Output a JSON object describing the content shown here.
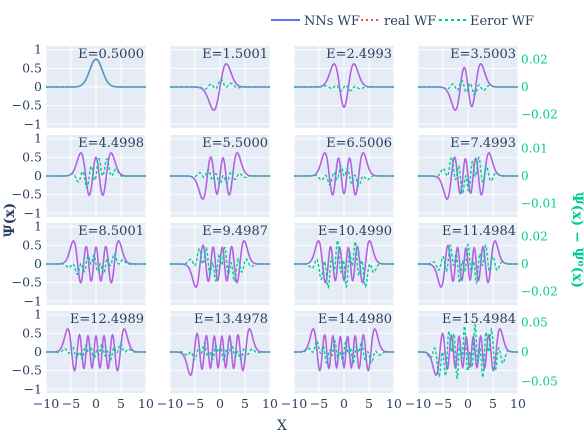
{
  "legend": {
    "nn_label": "NNs WF",
    "real_label": "real WF",
    "error_label": "Eeror WF"
  },
  "colors": {
    "nn": "#636efa",
    "real": "#ef553b",
    "error": "#00cc96",
    "product": "#ab63fa",
    "panel_bg": "#e5ecf6",
    "grid": "#ffffff",
    "text": "#2a3f5f"
  },
  "axes": {
    "xlabel": "X",
    "ylabel_left": "Ψ(x)",
    "ylabel_right": "Ψ(x) − Ψ⁰(x)"
  },
  "chart_data": {
    "type": "line",
    "grid": "on",
    "legend_placement": "top-right",
    "xlim": [
      -10,
      10
    ],
    "ylim": [
      -1.1,
      1.1
    ],
    "x_ticks": [
      -10,
      -5,
      0,
      5,
      10
    ],
    "x_tick_labels": [
      "−10",
      "−5",
      "0",
      "5",
      "10"
    ],
    "y_ticks": [
      -1,
      -0.5,
      0,
      0.5,
      1
    ],
    "y_tick_labels": [
      "−1",
      "−0.5",
      "0",
      "0.5",
      "1"
    ],
    "panels": [
      {
        "energy_label": "E=0.5000",
        "n": 0,
        "err_amp": 0.75,
        "err_range": [
          -0.03,
          0.03
        ],
        "err_ticks": [
          0.02,
          0,
          -0.02
        ],
        "err_tick_labels": [
          "0.02",
          "0",
          "−0.02"
        ]
      },
      {
        "energy_label": "E=1.5001",
        "n": 1,
        "err_amp": 0.45,
        "err_range": [
          -0.03,
          0.03
        ],
        "err_ticks": [
          0.02,
          0,
          -0.02
        ],
        "err_tick_labels": [
          "0.02",
          "0",
          "−0.02"
        ]
      },
      {
        "energy_label": "E=2.4993",
        "n": 2,
        "err_amp": 0.25,
        "err_range": [
          -0.03,
          0.03
        ],
        "err_ticks": [
          0.02,
          0,
          -0.02
        ],
        "err_tick_labels": [
          "0.02",
          "0",
          "−0.02"
        ]
      },
      {
        "energy_label": "E=3.5003",
        "n": 3,
        "err_amp": 0.45,
        "err_range": [
          -0.03,
          0.03
        ],
        "err_ticks": [
          0.02,
          0,
          -0.02
        ],
        "err_tick_labels": [
          "0.02",
          "0",
          "−0.02"
        ]
      },
      {
        "energy_label": "E=4.4998",
        "n": 4,
        "err_amp": 0.75,
        "err_range": [
          -0.015,
          0.015
        ],
        "err_ticks": [
          0.01,
          0,
          -0.01
        ],
        "err_tick_labels": [
          "0.01",
          "0",
          "−0.01"
        ]
      },
      {
        "energy_label": "E=5.5000",
        "n": 5,
        "err_amp": 0.35,
        "err_range": [
          -0.015,
          0.015
        ],
        "err_ticks": [
          0.01,
          0,
          -0.01
        ],
        "err_tick_labels": [
          "0.01",
          "0",
          "−0.01"
        ]
      },
      {
        "energy_label": "E=6.5006",
        "n": 6,
        "err_amp": 0.4,
        "err_range": [
          -0.015,
          0.015
        ],
        "err_ticks": [
          0.01,
          0,
          -0.01
        ],
        "err_tick_labels": [
          "0.01",
          "0",
          "−0.01"
        ]
      },
      {
        "energy_label": "E=7.4993",
        "n": 7,
        "err_amp": 0.75,
        "err_range": [
          -0.015,
          0.015
        ],
        "err_ticks": [
          0.01,
          0,
          -0.01
        ],
        "err_tick_labels": [
          "0.01",
          "0",
          "−0.01"
        ]
      },
      {
        "energy_label": "E=8.5001",
        "n": 8,
        "err_amp": 0.4,
        "err_range": [
          -0.03,
          0.03
        ],
        "err_ticks": [
          0.02,
          0,
          -0.02
        ],
        "err_tick_labels": [
          "0.02",
          "0",
          "−0.02"
        ]
      },
      {
        "energy_label": "E=9.4987",
        "n": 9,
        "err_amp": 0.65,
        "err_range": [
          -0.03,
          0.03
        ],
        "err_ticks": [
          0.02,
          0,
          -0.02
        ],
        "err_tick_labels": [
          "0.02",
          "0",
          "−0.02"
        ]
      },
      {
        "energy_label": "E=10.4990",
        "n": 10,
        "err_amp": 0.85,
        "err_range": [
          -0.03,
          0.03
        ],
        "err_ticks": [
          0.02,
          0,
          -0.02
        ],
        "err_tick_labels": [
          "0.02",
          "0",
          "−0.02"
        ]
      },
      {
        "energy_label": "E=11.4984",
        "n": 11,
        "err_amp": 0.7,
        "err_range": [
          -0.03,
          0.03
        ],
        "err_ticks": [
          0.02,
          0,
          -0.02
        ],
        "err_tick_labels": [
          "0.02",
          "0",
          "−0.02"
        ]
      },
      {
        "energy_label": "E=12.4989",
        "n": 12,
        "err_amp": 0.3,
        "err_range": [
          -0.07,
          0.07
        ],
        "err_ticks": [
          0.05,
          0,
          -0.05
        ],
        "err_tick_labels": [
          "0.05",
          "0",
          "−0.05"
        ]
      },
      {
        "energy_label": "E=13.4978",
        "n": 13,
        "err_amp": 0.3,
        "err_range": [
          -0.07,
          0.07
        ],
        "err_ticks": [
          0.05,
          0,
          -0.05
        ],
        "err_tick_labels": [
          "0.05",
          "0",
          "−0.05"
        ]
      },
      {
        "energy_label": "E=14.4980",
        "n": 14,
        "err_amp": 0.4,
        "err_range": [
          -0.07,
          0.07
        ],
        "err_ticks": [
          0.05,
          0,
          -0.05
        ],
        "err_tick_labels": [
          "0.05",
          "0",
          "−0.05"
        ]
      },
      {
        "energy_label": "E=15.4984",
        "n": 15,
        "err_amp": 1.0,
        "err_range": [
          -0.07,
          0.07
        ],
        "err_ticks": [
          0.05,
          0,
          -0.05
        ],
        "err_tick_labels": [
          "0.05",
          "0",
          "−0.05"
        ]
      }
    ]
  }
}
